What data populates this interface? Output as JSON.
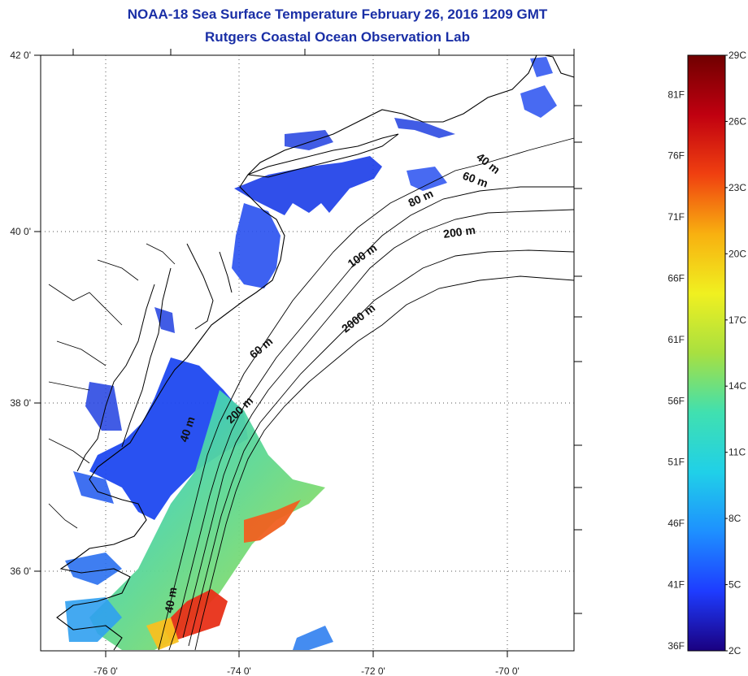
{
  "title_line1": "NOAA-18 Sea Surface Temperature February 26, 2016 1209 GMT",
  "title_line2": "Rutgers Coastal Ocean Observation Lab",
  "map": {
    "lon_ticks": [
      "-76 0'",
      "-74 0'",
      "-72 0'",
      "-70 0'"
    ],
    "lat_ticks": [
      "42 0'",
      "40 0'",
      "38 0'",
      "36 0'"
    ],
    "contour_labels": [
      "40 m",
      "60 m",
      "80 m",
      "200 m",
      "100 m",
      "2000 m",
      "60 m",
      "200 m",
      "40 m",
      "40 m"
    ]
  },
  "colorbar": {
    "celsius_labels": [
      "29C",
      "26C",
      "23C",
      "20C",
      "17C",
      "14C",
      "11C",
      "8C",
      "5C",
      "2C"
    ],
    "fahrenheit_labels": [
      "81F",
      "76F",
      "71F",
      "66F",
      "61F",
      "56F",
      "51F",
      "46F",
      "41F",
      "36F"
    ],
    "stops": [
      "#1a0080",
      "#1e3cff",
      "#1e90ff",
      "#20d0e8",
      "#40e0b0",
      "#a8e040",
      "#f0f020",
      "#f8b010",
      "#f04010",
      "#c00010",
      "#700000"
    ]
  }
}
